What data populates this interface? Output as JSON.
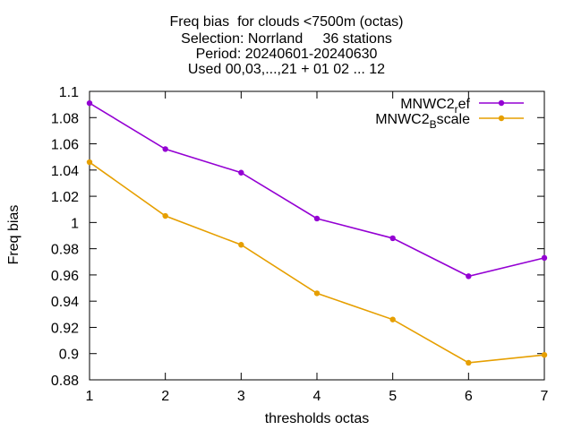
{
  "chart_data": {
    "type": "line",
    "title_lines": [
      "Freq bias  for clouds <7500m (octas)",
      "Selection: Norrland     36 stations",
      "Period: 20240601-20240630",
      "Used 00,03,...,21 + 01 02 ... 12"
    ],
    "xlabel": "thresholds octas",
    "ylabel": "Freq bias",
    "x": [
      1,
      2,
      3,
      4,
      5,
      6,
      7
    ],
    "xlim": [
      1,
      7
    ],
    "ylim": [
      0.88,
      1.1
    ],
    "yticks": [
      0.88,
      0.9,
      0.92,
      0.94,
      0.96,
      0.98,
      1,
      1.02,
      1.04,
      1.06,
      1.08,
      1.1
    ],
    "ytick_labels": [
      "0.88",
      "0.9",
      "0.92",
      "0.94",
      "0.96",
      "0.98",
      "1",
      "1.02",
      "1.04",
      "1.06",
      "1.08",
      "1.1"
    ],
    "xtick_labels": [
      "1",
      "2",
      "3",
      "4",
      "5",
      "6",
      "7"
    ],
    "grid": false,
    "legend_position": "top-right",
    "series": [
      {
        "name_main": "MNWC2",
        "name_sub": "r",
        "name_rest": "ef",
        "color": "#9400d3",
        "values": [
          1.091,
          1.056,
          1.038,
          1.003,
          0.988,
          0.959,
          0.973
        ]
      },
      {
        "name_main": "MNWC2",
        "name_sub": "B",
        "name_rest": "scale",
        "color": "#e69f00",
        "values": [
          1.046,
          1.005,
          0.983,
          0.946,
          0.926,
          0.893,
          0.899
        ]
      }
    ]
  }
}
